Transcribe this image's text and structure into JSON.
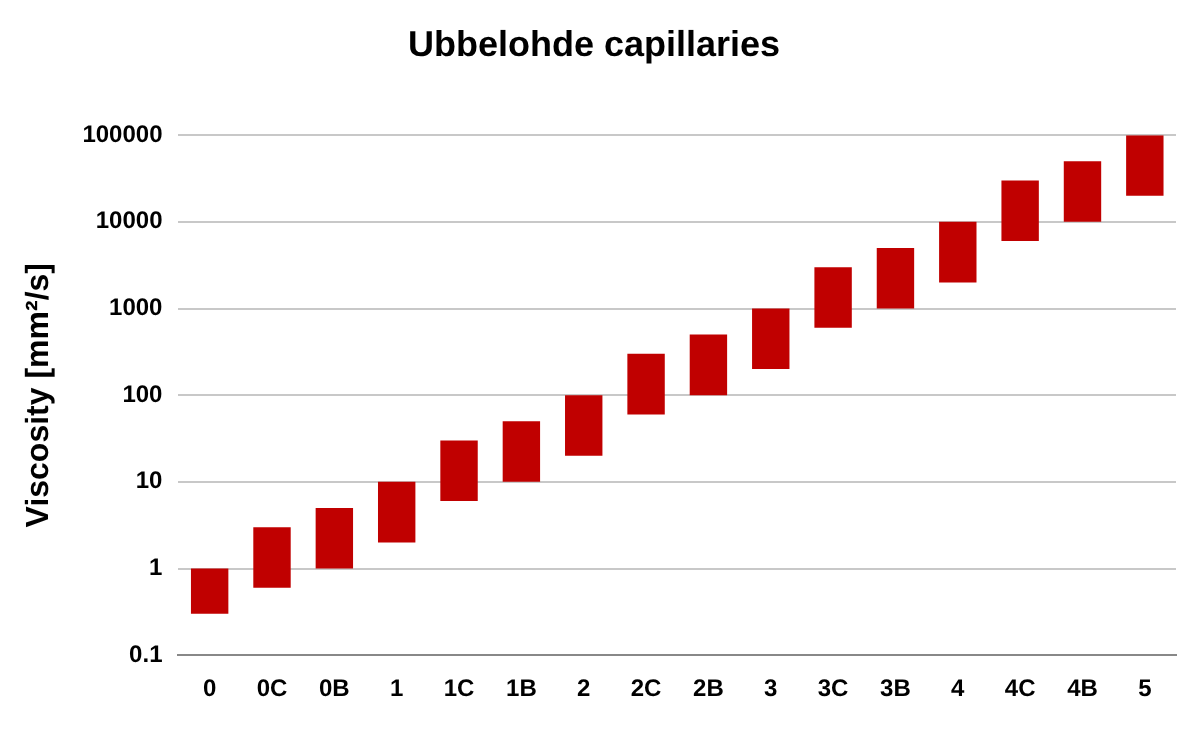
{
  "chart_data": {
    "type": "bar",
    "title": "Ubbelohde capillaries",
    "ylabel": "Viscosity [mm²/s]",
    "categories": [
      "0",
      "0C",
      "0B",
      "1",
      "1C",
      "1B",
      "2",
      "2C",
      "2B",
      "3",
      "3C",
      "3B",
      "4",
      "4C",
      "4B",
      "5"
    ],
    "base": [
      0.3,
      0.6,
      1,
      2,
      6,
      10,
      20,
      60,
      100,
      200,
      600,
      1000,
      2000,
      6000,
      10000,
      20000
    ],
    "values": [
      0.7,
      2.4,
      4,
      8,
      24,
      40,
      80,
      240,
      400,
      800,
      2400,
      4000,
      8000,
      24000,
      40000,
      80000
    ],
    "color": "#c00000",
    "log": true,
    "ylim": [
      0.1,
      100000
    ],
    "yticks": [
      0.1,
      1,
      10,
      100,
      1000,
      10000,
      100000
    ],
    "grid": "y",
    "legend": false
  }
}
